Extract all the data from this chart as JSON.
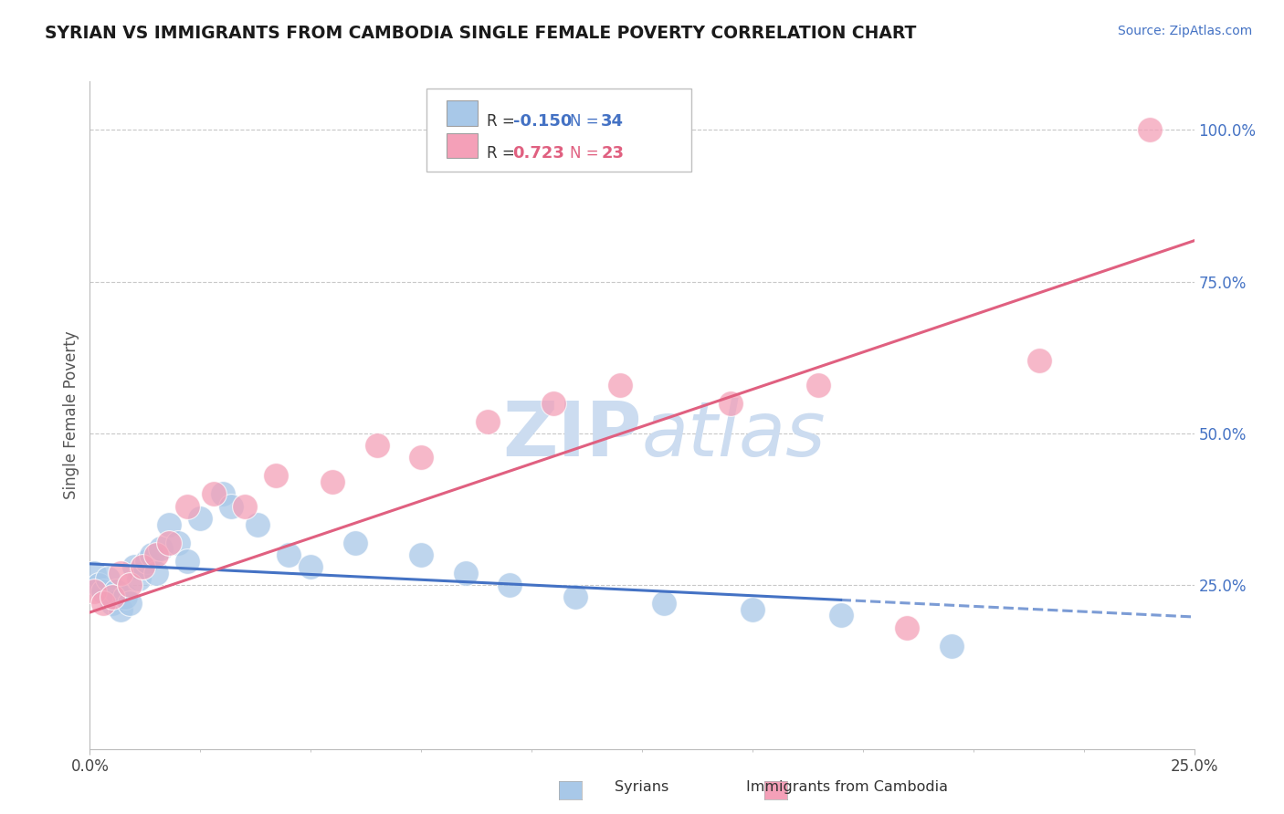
{
  "title": "SYRIAN VS IMMIGRANTS FROM CAMBODIA SINGLE FEMALE POVERTY CORRELATION CHART",
  "source": "Source: ZipAtlas.com",
  "ylabel": "Single Female Poverty",
  "legend_r_blue": "-0.150",
  "legend_r_pink": "0.723",
  "legend_n_blue": "34",
  "legend_n_pink": "23",
  "blue_color": "#a8c8e8",
  "pink_color": "#f4a0b8",
  "blue_line_color": "#4472c4",
  "pink_line_color": "#e06080",
  "background_color": "#ffffff",
  "grid_color": "#c8c8c8",
  "watermark_color": "#ccdcf0",
  "title_color": "#1a1a1a",
  "source_color": "#4472c4",
  "right_tick_color": "#4472c4",
  "xlim": [
    0.0,
    0.25
  ],
  "ylim": [
    -0.02,
    1.08
  ],
  "syrians_x": [
    0.001,
    0.002,
    0.003,
    0.004,
    0.005,
    0.006,
    0.007,
    0.008,
    0.009,
    0.01,
    0.011,
    0.012,
    0.013,
    0.014,
    0.015,
    0.016,
    0.018,
    0.02,
    0.022,
    0.025,
    0.03,
    0.032,
    0.038,
    0.045,
    0.05,
    0.06,
    0.075,
    0.085,
    0.095,
    0.11,
    0.13,
    0.15,
    0.17,
    0.195
  ],
  "syrians_y": [
    0.27,
    0.25,
    0.24,
    0.26,
    0.22,
    0.24,
    0.21,
    0.23,
    0.22,
    0.28,
    0.26,
    0.28,
    0.29,
    0.3,
    0.27,
    0.31,
    0.35,
    0.32,
    0.29,
    0.36,
    0.4,
    0.38,
    0.35,
    0.3,
    0.28,
    0.32,
    0.3,
    0.27,
    0.25,
    0.23,
    0.22,
    0.21,
    0.2,
    0.15
  ],
  "cambodia_x": [
    0.001,
    0.003,
    0.005,
    0.007,
    0.009,
    0.012,
    0.015,
    0.018,
    0.022,
    0.028,
    0.035,
    0.042,
    0.055,
    0.065,
    0.075,
    0.09,
    0.105,
    0.12,
    0.145,
    0.165,
    0.185,
    0.215,
    0.24
  ],
  "cambodia_y": [
    0.24,
    0.22,
    0.23,
    0.27,
    0.25,
    0.28,
    0.3,
    0.32,
    0.38,
    0.4,
    0.38,
    0.43,
    0.42,
    0.48,
    0.46,
    0.52,
    0.55,
    0.58,
    0.55,
    0.58,
    0.18,
    0.62,
    1.0
  ]
}
